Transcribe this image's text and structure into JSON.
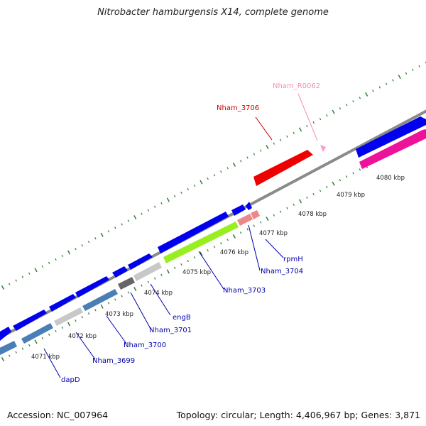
{
  "title": "Nitrobacter hamburgensis X14, complete genome",
  "footer": {
    "accession": "Accession: NC_007964",
    "summary": "Topology: circular; Length: 4,406,967 bp; Genes: 3,871"
  },
  "colors": {
    "backbone": "#888888",
    "tick": "#2e7d32",
    "forward_gene": "#0000ee",
    "steelblue_gene": "#4a7fb5",
    "gray_gene": "#c0c0c0",
    "darkgray_gene": "#666666",
    "green_gene": "#99ee22",
    "salmon_gene": "#ee8888",
    "red_gene": "#ee0000",
    "pink_gene": "#ee1199",
    "label_blue": "#0000aa",
    "label_red": "#cc0000",
    "label_pink": "#f090b8"
  },
  "scale": {
    "kbp_labels": [
      "4071 kbp",
      "4072 kbp",
      "4073 kbp",
      "4074 kbp",
      "4075 kbp",
      "4076 kbp",
      "4077 kbp",
      "4078 kbp",
      "4079 kbp",
      "4080 kbp"
    ]
  },
  "gene_labels": [
    {
      "text": "dapD",
      "color": "label_blue"
    },
    {
      "text": "Nham_3699",
      "color": "label_blue"
    },
    {
      "text": "Nham_3700",
      "color": "label_blue"
    },
    {
      "text": "Nham_3701",
      "color": "label_blue"
    },
    {
      "text": "engB",
      "color": "label_blue"
    },
    {
      "text": "Nham_3703",
      "color": "label_blue"
    },
    {
      "text": "Nham_3704",
      "color": "label_blue"
    },
    {
      "text": "rpmH",
      "color": "label_blue"
    },
    {
      "text": "Nham_3706",
      "color": "label_red"
    },
    {
      "text": "Nham_R0062",
      "color": "label_pink"
    }
  ]
}
